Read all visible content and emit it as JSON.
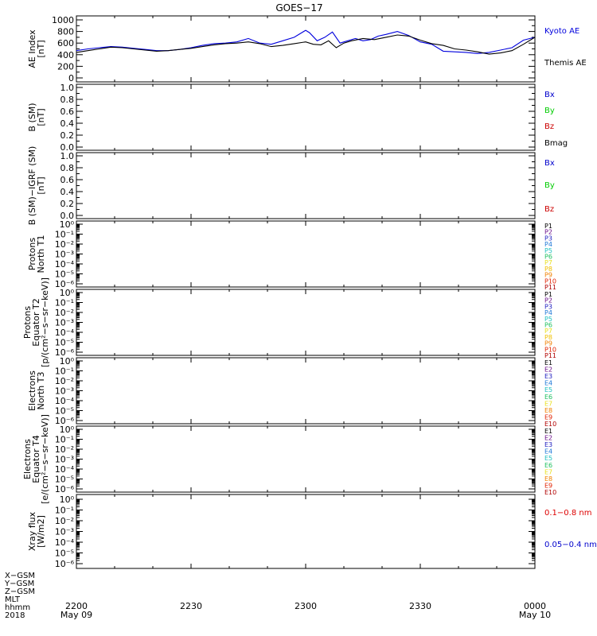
{
  "chart_data": {
    "title": "GOES−17",
    "type": "line",
    "x_ticks": [
      {
        "time": "2200",
        "date": "May 09"
      },
      {
        "time": "2230",
        "date": ""
      },
      {
        "time": "2300",
        "date": ""
      },
      {
        "time": "2330",
        "date": ""
      },
      {
        "time": "0000",
        "date": "May 10"
      }
    ],
    "x_range_minutes": [
      0,
      120
    ],
    "footer_labels": [
      "X−GSM",
      "Y−GSM",
      "Z−GSM",
      "MLT",
      "hhmm",
      "2018"
    ],
    "panels": [
      {
        "id": "ae",
        "ylabel": [
          "AE Index",
          "[nT]"
        ],
        "scale": "linear",
        "ylim": [
          0,
          1000
        ],
        "ticks": [
          "0",
          "200",
          "400",
          "600",
          "800",
          "1000"
        ],
        "tick_values": [
          0,
          200,
          400,
          600,
          800,
          1000
        ],
        "legend": [
          {
            "label": "Kyoto AE",
            "color": "#0000dd"
          },
          {
            "label": "Themis AE",
            "color": "#000000"
          }
        ],
        "series": [
          {
            "name": "Kyoto AE",
            "color": "#0000dd",
            "x": [
              0,
              3,
              6,
              9,
              12,
              15,
              18,
              21,
              24,
              27,
              30,
              33,
              36,
              39,
              42,
              45,
              48,
              51,
              54,
              57,
              60,
              61,
              63,
              65,
              67,
              69,
              71,
              73,
              75,
              77,
              79,
              81,
              84,
              87,
              90,
              93,
              96,
              99,
              102,
              105,
              108,
              111,
              114,
              117,
              120
            ],
            "y": [
              470,
              500,
              520,
              540,
              530,
              510,
              490,
              470,
              470,
              490,
              520,
              560,
              590,
              600,
              620,
              680,
              600,
              580,
              640,
              700,
              820,
              780,
              640,
              700,
              790,
              600,
              640,
              680,
              640,
              660,
              720,
              750,
              800,
              730,
              620,
              580,
              460,
              450,
              440,
              420,
              440,
              480,
              520,
              650,
              700
            ]
          },
          {
            "name": "Themis AE",
            "color": "#000000",
            "x": [
              0,
              3,
              6,
              9,
              12,
              15,
              18,
              21,
              24,
              27,
              30,
              33,
              36,
              39,
              42,
              45,
              48,
              51,
              54,
              57,
              60,
              62,
              64,
              66,
              68,
              70,
              72,
              75,
              78,
              81,
              84,
              87,
              90,
              93,
              96,
              99,
              102,
              105,
              108,
              111,
              114,
              117,
              120
            ],
            "y": [
              440,
              470,
              500,
              530,
              520,
              500,
              480,
              460,
              470,
              490,
              510,
              540,
              570,
              590,
              600,
              620,
              590,
              540,
              560,
              590,
              620,
              580,
              570,
              640,
              520,
              600,
              640,
              680,
              660,
              700,
              740,
              720,
              650,
              590,
              560,
              500,
              480,
              450,
              410,
              430,
              470,
              580,
              700
            ]
          }
        ]
      },
      {
        "id": "bsm",
        "ylabel": [
          "B (SM)",
          "[nT]"
        ],
        "scale": "linear",
        "ylim": [
          0,
          1
        ],
        "ticks": [
          "0.0",
          "0.2",
          "0.4",
          "0.6",
          "0.8",
          "1.0"
        ],
        "tick_values": [
          0,
          0.2,
          0.4,
          0.6,
          0.8,
          1.0
        ],
        "legend": [
          {
            "label": "Bx",
            "color": "#0000cc"
          },
          {
            "label": "By",
            "color": "#00cc00"
          },
          {
            "label": "Bz",
            "color": "#cc0000"
          },
          {
            "label": "Bmag",
            "color": "#000000"
          }
        ]
      },
      {
        "id": "bigrf",
        "ylabel": [
          "B (SM)−IGRF (SM)",
          "[nT]"
        ],
        "scale": "linear",
        "ylim": [
          0,
          1
        ],
        "ticks": [
          "0.0",
          "0.2",
          "0.4",
          "0.6",
          "0.8",
          "1.0"
        ],
        "tick_values": [
          0,
          0.2,
          0.4,
          0.6,
          0.8,
          1.0
        ],
        "legend": [
          {
            "label": "Bx",
            "color": "#0000cc"
          },
          {
            "label": "By",
            "color": "#00cc00"
          },
          {
            "label": "Bz",
            "color": "#cc0000"
          }
        ]
      },
      {
        "id": "pt1",
        "ylabel": [
          "Protons",
          "North T1"
        ],
        "scale": "log",
        "ticks": [
          "10⁰",
          "10⁻¹",
          "10⁻²",
          "10⁻³",
          "10⁻⁴",
          "10⁻⁵",
          "10⁻⁶"
        ],
        "tick_values": [
          0,
          -1,
          -2,
          -3,
          -4,
          -5,
          -6
        ],
        "legend": [
          {
            "label": "P1",
            "color": "#000000"
          },
          {
            "label": "P2",
            "color": "#6a0d8a"
          },
          {
            "label": "P3",
            "color": "#2020c0"
          },
          {
            "label": "P4",
            "color": "#1e78d8"
          },
          {
            "label": "P5",
            "color": "#20c0c0"
          },
          {
            "label": "P6",
            "color": "#20c060"
          },
          {
            "label": "P7",
            "color": "#e8e020"
          },
          {
            "label": "P8",
            "color": "#f0c000"
          },
          {
            "label": "P9",
            "color": "#f08000"
          },
          {
            "label": "P10",
            "color": "#e02000"
          },
          {
            "label": "P11",
            "color": "#b00000"
          }
        ]
      },
      {
        "id": "pt2",
        "ylabel": [
          "Protons",
          "Equator T2",
          "[p/(cm²−s−sr−keV)]"
        ],
        "scale": "log",
        "ticks": [
          "10⁰",
          "10⁻¹",
          "10⁻²",
          "10⁻³",
          "10⁻⁴",
          "10⁻⁵",
          "10⁻⁶"
        ],
        "tick_values": [
          0,
          -1,
          -2,
          -3,
          -4,
          -5,
          -6
        ],
        "legend": [
          {
            "label": "P1",
            "color": "#000000"
          },
          {
            "label": "P2",
            "color": "#6a0d8a"
          },
          {
            "label": "P3",
            "color": "#2020c0"
          },
          {
            "label": "P4",
            "color": "#1e78d8"
          },
          {
            "label": "P5",
            "color": "#20c0c0"
          },
          {
            "label": "P6",
            "color": "#20c060"
          },
          {
            "label": "P7",
            "color": "#e8e020"
          },
          {
            "label": "P8",
            "color": "#f0c000"
          },
          {
            "label": "P9",
            "color": "#f08000"
          },
          {
            "label": "P10",
            "color": "#e02000"
          },
          {
            "label": "P11",
            "color": "#b00000"
          }
        ]
      },
      {
        "id": "et3",
        "ylabel": [
          "Electrons",
          "North T3"
        ],
        "scale": "log",
        "ticks": [
          "10⁰",
          "10⁻¹",
          "10⁻²",
          "10⁻³",
          "10⁻⁴",
          "10⁻⁵",
          "10⁻⁶"
        ],
        "tick_values": [
          0,
          -1,
          -2,
          -3,
          -4,
          -5,
          -6
        ],
        "legend": [
          {
            "label": "E1",
            "color": "#000000"
          },
          {
            "label": "E2",
            "color": "#6a0d8a"
          },
          {
            "label": "E3",
            "color": "#2020c0"
          },
          {
            "label": "E4",
            "color": "#1e78d8"
          },
          {
            "label": "E5",
            "color": "#20c0c0"
          },
          {
            "label": "E6",
            "color": "#20c060"
          },
          {
            "label": "E7",
            "color": "#e8e020"
          },
          {
            "label": "E8",
            "color": "#f08000"
          },
          {
            "label": "E9",
            "color": "#e02000"
          },
          {
            "label": "E10",
            "color": "#b00000"
          }
        ]
      },
      {
        "id": "et4",
        "ylabel": [
          "Electrons",
          "Equator T4",
          "[e/(cm²−s−sr−keV)]"
        ],
        "scale": "log",
        "ticks": [
          "10⁰",
          "10⁻¹",
          "10⁻²",
          "10⁻³",
          "10⁻⁴",
          "10⁻⁵",
          "10⁻⁶"
        ],
        "tick_values": [
          0,
          -1,
          -2,
          -3,
          -4,
          -5,
          -6
        ],
        "legend": [
          {
            "label": "E1",
            "color": "#000000"
          },
          {
            "label": "E2",
            "color": "#6a0d8a"
          },
          {
            "label": "E3",
            "color": "#2020c0"
          },
          {
            "label": "E4",
            "color": "#1e78d8"
          },
          {
            "label": "E5",
            "color": "#20c0c0"
          },
          {
            "label": "E6",
            "color": "#20c060"
          },
          {
            "label": "E7",
            "color": "#e8e020"
          },
          {
            "label": "E8",
            "color": "#f08000"
          },
          {
            "label": "E9",
            "color": "#e02000"
          },
          {
            "label": "E10",
            "color": "#b00000"
          }
        ]
      },
      {
        "id": "xray",
        "ylabel": [
          "Xray flux",
          "[W/m2]"
        ],
        "scale": "log",
        "ticks": [
          "10⁰",
          "10⁻¹",
          "10⁻²",
          "10⁻³",
          "10⁻⁴",
          "10⁻⁵",
          "10⁻⁶"
        ],
        "tick_values": [
          0,
          -1,
          -2,
          -3,
          -4,
          -5,
          -6
        ],
        "legend": [
          {
            "label": "0.1−0.8 nm",
            "color": "#dd0000"
          },
          {
            "label": "0.05−0.4 nm",
            "color": "#0000cc"
          }
        ]
      }
    ]
  }
}
